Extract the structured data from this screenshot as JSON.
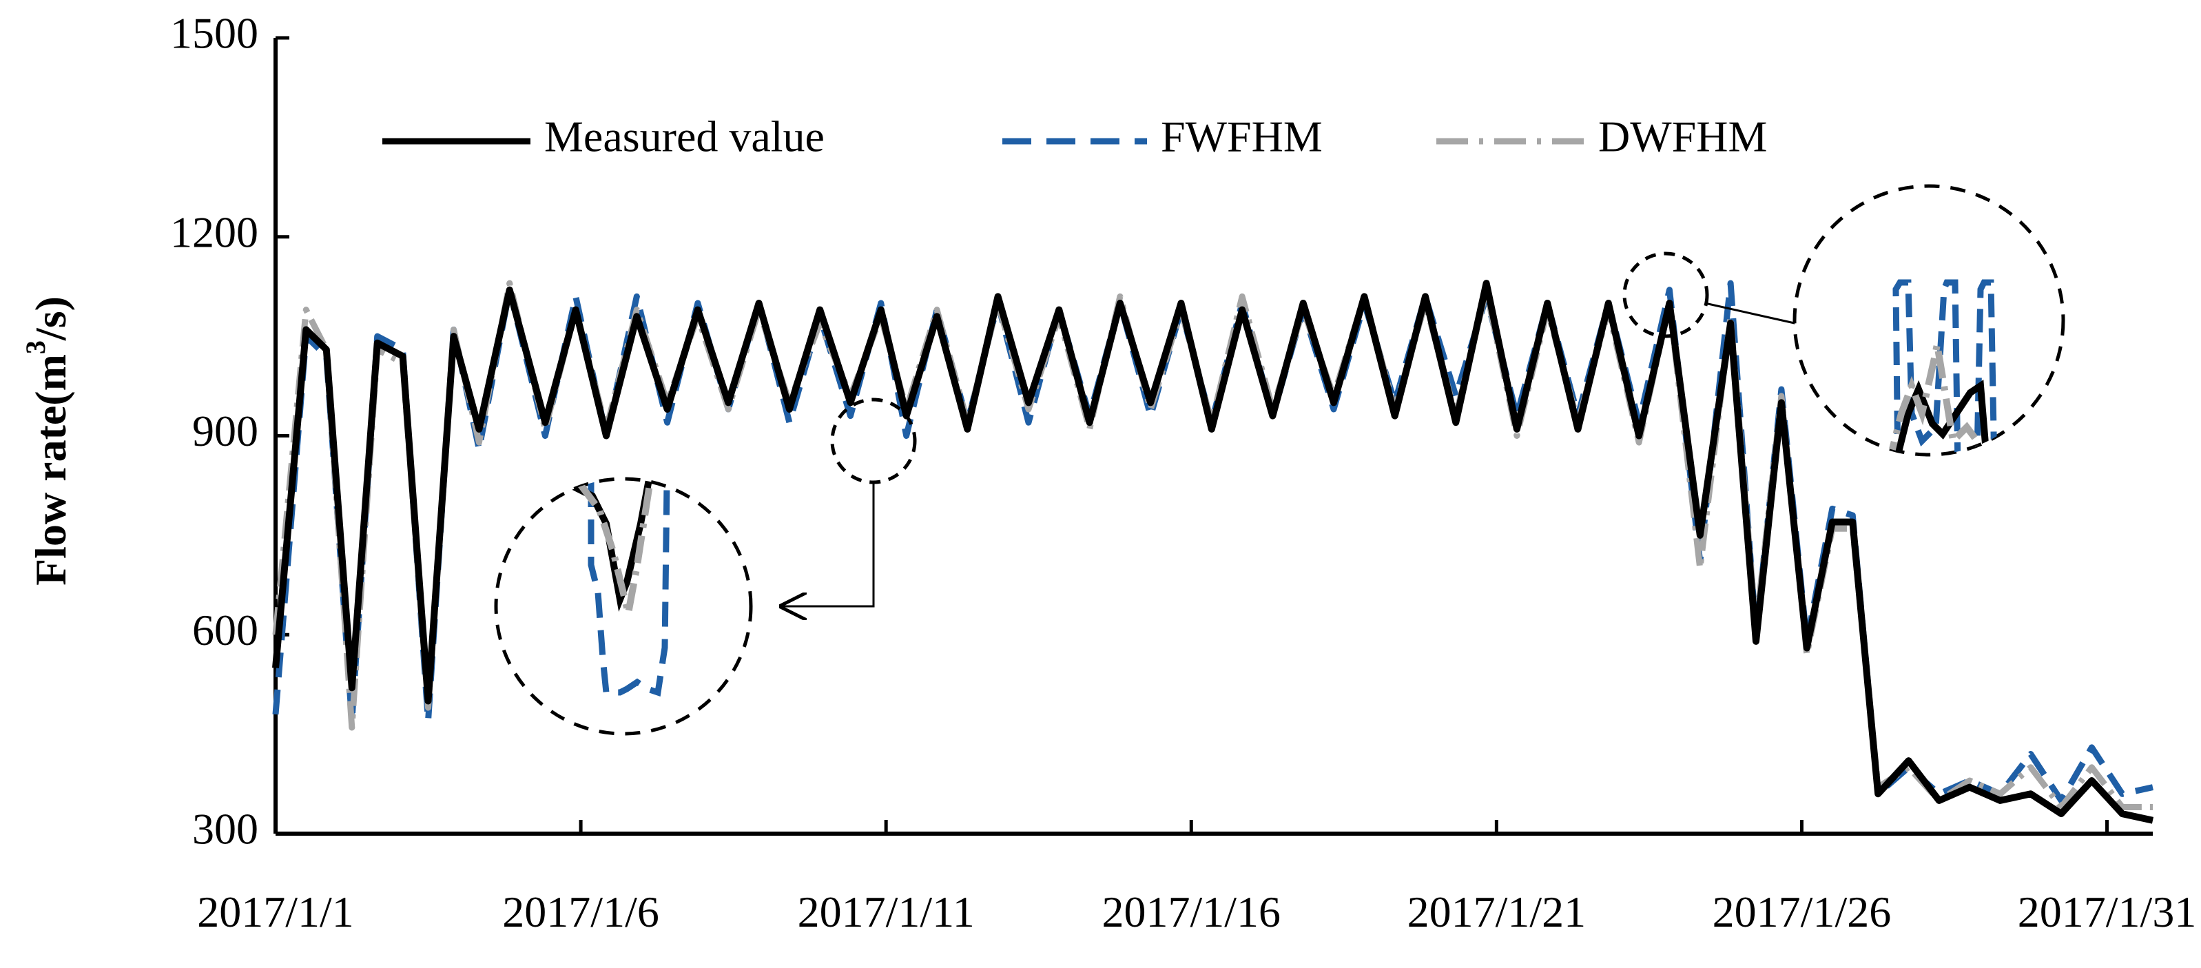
{
  "chart_data": {
    "type": "line",
    "ylabel": "Flow rate(m3/s)",
    "ylabel_main": "Flow rate(m",
    "ylabel_sup": "3",
    "ylabel_tail": "/s)",
    "ylim": [
      300,
      1500
    ],
    "yticks": [
      300,
      600,
      900,
      1200,
      1500
    ],
    "xlim": [
      "2017/1/1",
      "2017/1/31"
    ],
    "xticks": [
      "2017/1/1",
      "2017/1/6",
      "2017/1/11",
      "2017/1/16",
      "2017/1/21",
      "2017/1/26",
      "2017/1/31"
    ],
    "grid": false,
    "legend_position": "top",
    "series": [
      {
        "name": "Measured value",
        "style": "solid",
        "color": "#000000",
        "points": [
          [
            "2017/1/1 00:00",
            550
          ],
          [
            "2017/1/1 12:00",
            1060
          ],
          [
            "2017/1/1 20:00",
            1030
          ],
          [
            "2017/1/2 06:00",
            520
          ],
          [
            "2017/1/2 16:00",
            1040
          ],
          [
            "2017/1/3 02:00",
            1020
          ],
          [
            "2017/1/3 12:00",
            500
          ],
          [
            "2017/1/3 22:00",
            1050
          ],
          [
            "2017/1/4 08:00",
            910
          ],
          [
            "2017/1/4 20:00",
            1120
          ],
          [
            "2017/1/5 10:00",
            920
          ],
          [
            "2017/1/5 22:00",
            1090
          ],
          [
            "2017/1/6 10:00",
            900
          ],
          [
            "2017/1/6 22:00",
            1080
          ],
          [
            "2017/1/7 10:00",
            940
          ],
          [
            "2017/1/7 22:00",
            1090
          ],
          [
            "2017/1/8 10:00",
            950
          ],
          [
            "2017/1/8 22:00",
            1100
          ],
          [
            "2017/1/9 10:00",
            940
          ],
          [
            "2017/1/9 22:00",
            1090
          ],
          [
            "2017/1/10 10:00",
            950
          ],
          [
            "2017/1/10 22:00",
            1090
          ],
          [
            "2017/1/11 08:00",
            930
          ],
          [
            "2017/1/11 20:00",
            1080
          ],
          [
            "2017/1/12 08:00",
            910
          ],
          [
            "2017/1/12 20:00",
            1110
          ],
          [
            "2017/1/13 08:00",
            950
          ],
          [
            "2017/1/13 20:00",
            1090
          ],
          [
            "2017/1/14 08:00",
            920
          ],
          [
            "2017/1/14 20:00",
            1100
          ],
          [
            "2017/1/15 08:00",
            950
          ],
          [
            "2017/1/15 20:00",
            1100
          ],
          [
            "2017/1/16 08:00",
            910
          ],
          [
            "2017/1/16 20:00",
            1090
          ],
          [
            "2017/1/17 08:00",
            930
          ],
          [
            "2017/1/17 20:00",
            1100
          ],
          [
            "2017/1/18 08:00",
            950
          ],
          [
            "2017/1/18 20:00",
            1110
          ],
          [
            "2017/1/19 08:00",
            930
          ],
          [
            "2017/1/19 20:00",
            1110
          ],
          [
            "2017/1/20 08:00",
            920
          ],
          [
            "2017/1/20 20:00",
            1130
          ],
          [
            "2017/1/21 08:00",
            910
          ],
          [
            "2017/1/21 20:00",
            1100
          ],
          [
            "2017/1/22 08:00",
            910
          ],
          [
            "2017/1/22 20:00",
            1100
          ],
          [
            "2017/1/23 08:00",
            900
          ],
          [
            "2017/1/23 20:00",
            1100
          ],
          [
            "2017/1/24 08:00",
            750
          ],
          [
            "2017/1/24 20:00",
            1070
          ],
          [
            "2017/1/25 06:00",
            590
          ],
          [
            "2017/1/25 16:00",
            950
          ],
          [
            "2017/1/26 02:00",
            580
          ],
          [
            "2017/1/26 12:00",
            770
          ],
          [
            "2017/1/26 20:00",
            770
          ],
          [
            "2017/1/27 06:00",
            360
          ],
          [
            "2017/1/27 18:00",
            410
          ],
          [
            "2017/1/28 06:00",
            350
          ],
          [
            "2017/1/28 18:00",
            370
          ],
          [
            "2017/1/29 06:00",
            350
          ],
          [
            "2017/1/29 18:00",
            360
          ],
          [
            "2017/1/30 06:00",
            330
          ],
          [
            "2017/1/30 18:00",
            380
          ],
          [
            "2017/1/31 06:00",
            330
          ],
          [
            "2017/1/31 18:00",
            320
          ]
        ]
      },
      {
        "name": "FWFHM",
        "style": "dashed",
        "color": "#1f5fa6",
        "points": [
          [
            "2017/1/1 00:00",
            480
          ],
          [
            "2017/1/1 12:00",
            1050
          ],
          [
            "2017/1/1 20:00",
            1020
          ],
          [
            "2017/1/2 06:00",
            470
          ],
          [
            "2017/1/2 16:00",
            1050
          ],
          [
            "2017/1/3 02:00",
            1030
          ],
          [
            "2017/1/3 12:00",
            470
          ],
          [
            "2017/1/3 22:00",
            1060
          ],
          [
            "2017/1/4 08:00",
            880
          ],
          [
            "2017/1/4 20:00",
            1120
          ],
          [
            "2017/1/5 10:00",
            900
          ],
          [
            "2017/1/5 22:00",
            1110
          ],
          [
            "2017/1/6 10:00",
            900
          ],
          [
            "2017/1/6 22:00",
            1110
          ],
          [
            "2017/1/7 10:00",
            920
          ],
          [
            "2017/1/7 22:00",
            1100
          ],
          [
            "2017/1/8 10:00",
            940
          ],
          [
            "2017/1/8 22:00",
            1100
          ],
          [
            "2017/1/9 10:00",
            920
          ],
          [
            "2017/1/9 22:00",
            1080
          ],
          [
            "2017/1/10 10:00",
            930
          ],
          [
            "2017/1/10 22:00",
            1100
          ],
          [
            "2017/1/11 08:00",
            900
          ],
          [
            "2017/1/11 20:00",
            1090
          ],
          [
            "2017/1/12 08:00",
            920
          ],
          [
            "2017/1/12 20:00",
            1100
          ],
          [
            "2017/1/13 08:00",
            920
          ],
          [
            "2017/1/13 20:00",
            1090
          ],
          [
            "2017/1/14 08:00",
            930
          ],
          [
            "2017/1/14 20:00",
            1100
          ],
          [
            "2017/1/15 08:00",
            930
          ],
          [
            "2017/1/15 20:00",
            1090
          ],
          [
            "2017/1/16 08:00",
            920
          ],
          [
            "2017/1/16 20:00",
            1100
          ],
          [
            "2017/1/17 08:00",
            930
          ],
          [
            "2017/1/17 20:00",
            1090
          ],
          [
            "2017/1/18 08:00",
            940
          ],
          [
            "2017/1/18 20:00",
            1100
          ],
          [
            "2017/1/19 08:00",
            950
          ],
          [
            "2017/1/19 20:00",
            1110
          ],
          [
            "2017/1/20 08:00",
            960
          ],
          [
            "2017/1/20 20:00",
            1110
          ],
          [
            "2017/1/21 08:00",
            930
          ],
          [
            "2017/1/21 20:00",
            1100
          ],
          [
            "2017/1/22 08:00",
            930
          ],
          [
            "2017/1/22 20:00",
            1100
          ],
          [
            "2017/1/23 08:00",
            920
          ],
          [
            "2017/1/23 20:00",
            1120
          ],
          [
            "2017/1/24 08:00",
            710
          ],
          [
            "2017/1/24 20:00",
            1130
          ],
          [
            "2017/1/25 06:00",
            600
          ],
          [
            "2017/1/25 16:00",
            970
          ],
          [
            "2017/1/26 02:00",
            590
          ],
          [
            "2017/1/26 12:00",
            790
          ],
          [
            "2017/1/26 20:00",
            780
          ],
          [
            "2017/1/27 06:00",
            360
          ],
          [
            "2017/1/27 18:00",
            400
          ],
          [
            "2017/1/28 06:00",
            360
          ],
          [
            "2017/1/28 18:00",
            380
          ],
          [
            "2017/1/29 06:00",
            360
          ],
          [
            "2017/1/29 18:00",
            420
          ],
          [
            "2017/1/30 06:00",
            350
          ],
          [
            "2017/1/30 18:00",
            430
          ],
          [
            "2017/1/31 06:00",
            360
          ],
          [
            "2017/1/31 18:00",
            370
          ]
        ]
      },
      {
        "name": "DWFHM",
        "style": "dash-dot",
        "color": "#a6a6a6",
        "points": [
          [
            "2017/1/1 00:00",
            600
          ],
          [
            "2017/1/1 12:00",
            1090
          ],
          [
            "2017/1/1 20:00",
            1030
          ],
          [
            "2017/1/2 06:00",
            460
          ],
          [
            "2017/1/2 16:00",
            1030
          ],
          [
            "2017/1/3 02:00",
            1010
          ],
          [
            "2017/1/3 12:00",
            490
          ],
          [
            "2017/1/3 22:00",
            1060
          ],
          [
            "2017/1/4 08:00",
            890
          ],
          [
            "2017/1/4 20:00",
            1130
          ],
          [
            "2017/1/5 10:00",
            910
          ],
          [
            "2017/1/5 22:00",
            1090
          ],
          [
            "2017/1/6 10:00",
            910
          ],
          [
            "2017/1/6 22:00",
            1090
          ],
          [
            "2017/1/7 10:00",
            950
          ],
          [
            "2017/1/7 22:00",
            1080
          ],
          [
            "2017/1/8 10:00",
            940
          ],
          [
            "2017/1/8 22:00",
            1090
          ],
          [
            "2017/1/9 10:00",
            950
          ],
          [
            "2017/1/9 22:00",
            1070
          ],
          [
            "2017/1/10 10:00",
            960
          ],
          [
            "2017/1/10 22:00",
            1080
          ],
          [
            "2017/1/11 08:00",
            940
          ],
          [
            "2017/1/11 20:00",
            1090
          ],
          [
            "2017/1/12 08:00",
            920
          ],
          [
            "2017/1/12 20:00",
            1100
          ],
          [
            "2017/1/13 08:00",
            940
          ],
          [
            "2017/1/13 20:00",
            1080
          ],
          [
            "2017/1/14 08:00",
            910
          ],
          [
            "2017/1/14 20:00",
            1110
          ],
          [
            "2017/1/15 08:00",
            940
          ],
          [
            "2017/1/15 20:00",
            1090
          ],
          [
            "2017/1/16 08:00",
            920
          ],
          [
            "2017/1/16 20:00",
            1110
          ],
          [
            "2017/1/17 08:00",
            940
          ],
          [
            "2017/1/17 20:00",
            1090
          ],
          [
            "2017/1/18 08:00",
            960
          ],
          [
            "2017/1/18 20:00",
            1110
          ],
          [
            "2017/1/19 08:00",
            940
          ],
          [
            "2017/1/19 20:00",
            1100
          ],
          [
            "2017/1/20 08:00",
            930
          ],
          [
            "2017/1/20 20:00",
            1120
          ],
          [
            "2017/1/21 08:00",
            900
          ],
          [
            "2017/1/21 20:00",
            1090
          ],
          [
            "2017/1/22 08:00",
            920
          ],
          [
            "2017/1/22 20:00",
            1090
          ],
          [
            "2017/1/23 08:00",
            890
          ],
          [
            "2017/1/23 20:00",
            1100
          ],
          [
            "2017/1/24 08:00",
            700
          ],
          [
            "2017/1/24 20:00",
            1080
          ],
          [
            "2017/1/25 06:00",
            610
          ],
          [
            "2017/1/25 16:00",
            960
          ],
          [
            "2017/1/26 02:00",
            570
          ],
          [
            "2017/1/26 12:00",
            760
          ],
          [
            "2017/1/26 20:00",
            760
          ],
          [
            "2017/1/27 06:00",
            370
          ],
          [
            "2017/1/27 18:00",
            400
          ],
          [
            "2017/1/28 06:00",
            350
          ],
          [
            "2017/1/28 18:00",
            380
          ],
          [
            "2017/1/29 06:00",
            360
          ],
          [
            "2017/1/29 18:00",
            400
          ],
          [
            "2017/1/30 06:00",
            340
          ],
          [
            "2017/1/30 18:00",
            400
          ],
          [
            "2017/1/31 06:00",
            340
          ],
          [
            "2017/1/31 18:00",
            340
          ]
        ]
      }
    ]
  }
}
